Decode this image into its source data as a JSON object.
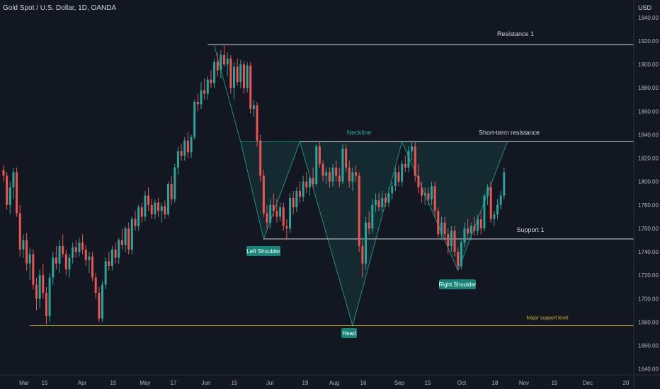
{
  "header": {
    "symbol": "Gold Spot / U.S. Dollar, 1D, OANDA",
    "currency": "USD"
  },
  "chart_data": {
    "type": "candlestick",
    "ylim": [
      1635,
      1955
    ],
    "y_ticks": [
      1940,
      1920,
      1900,
      1880,
      1860,
      1840,
      1820,
      1800,
      1780,
      1760,
      1740,
      1720,
      1700,
      1680,
      1660,
      1640
    ],
    "x_ticks": [
      "Mar",
      "15",
      "Apr",
      "15",
      "May",
      "17",
      "Jun",
      "15",
      "Jul",
      "19",
      "Aug",
      "16",
      "Sep",
      "15",
      "Oct",
      "18",
      "Nov",
      "15",
      "Dec",
      "20"
    ],
    "grid": false,
    "candles": [
      {
        "o": 1810,
        "h": 1814,
        "l": 1800,
        "c": 1805
      },
      {
        "o": 1805,
        "h": 1808,
        "l": 1776,
        "c": 1780
      },
      {
        "o": 1780,
        "h": 1800,
        "l": 1772,
        "c": 1795
      },
      {
        "o": 1795,
        "h": 1812,
        "l": 1785,
        "c": 1808
      },
      {
        "o": 1808,
        "h": 1812,
        "l": 1770,
        "c": 1773
      },
      {
        "o": 1773,
        "h": 1780,
        "l": 1736,
        "c": 1742
      },
      {
        "o": 1742,
        "h": 1755,
        "l": 1735,
        "c": 1750
      },
      {
        "o": 1750,
        "h": 1756,
        "l": 1724,
        "c": 1730
      },
      {
        "o": 1730,
        "h": 1743,
        "l": 1716,
        "c": 1738
      },
      {
        "o": 1738,
        "h": 1742,
        "l": 1708,
        "c": 1712
      },
      {
        "o": 1712,
        "h": 1718,
        "l": 1690,
        "c": 1700
      },
      {
        "o": 1700,
        "h": 1725,
        "l": 1692,
        "c": 1720
      },
      {
        "o": 1720,
        "h": 1730,
        "l": 1700,
        "c": 1705
      },
      {
        "o": 1705,
        "h": 1710,
        "l": 1678,
        "c": 1685
      },
      {
        "o": 1685,
        "h": 1722,
        "l": 1680,
        "c": 1718
      },
      {
        "o": 1718,
        "h": 1740,
        "l": 1712,
        "c": 1735
      },
      {
        "o": 1735,
        "h": 1745,
        "l": 1725,
        "c": 1730
      },
      {
        "o": 1730,
        "h": 1750,
        "l": 1722,
        "c": 1745
      },
      {
        "o": 1745,
        "h": 1755,
        "l": 1735,
        "c": 1738
      },
      {
        "o": 1738,
        "h": 1742,
        "l": 1720,
        "c": 1725
      },
      {
        "o": 1725,
        "h": 1738,
        "l": 1718,
        "c": 1735
      },
      {
        "o": 1735,
        "h": 1748,
        "l": 1730,
        "c": 1744
      },
      {
        "o": 1744,
        "h": 1750,
        "l": 1735,
        "c": 1740
      },
      {
        "o": 1740,
        "h": 1752,
        "l": 1736,
        "c": 1748
      },
      {
        "o": 1748,
        "h": 1755,
        "l": 1738,
        "c": 1742
      },
      {
        "o": 1742,
        "h": 1746,
        "l": 1728,
        "c": 1733
      },
      {
        "o": 1733,
        "h": 1740,
        "l": 1722,
        "c": 1736
      },
      {
        "o": 1736,
        "h": 1740,
        "l": 1715,
        "c": 1718
      },
      {
        "o": 1718,
        "h": 1722,
        "l": 1700,
        "c": 1705
      },
      {
        "o": 1705,
        "h": 1710,
        "l": 1680,
        "c": 1683
      },
      {
        "o": 1683,
        "h": 1715,
        "l": 1680,
        "c": 1712
      },
      {
        "o": 1712,
        "h": 1735,
        "l": 1708,
        "c": 1732
      },
      {
        "o": 1732,
        "h": 1740,
        "l": 1724,
        "c": 1728
      },
      {
        "o": 1728,
        "h": 1745,
        "l": 1724,
        "c": 1742
      },
      {
        "o": 1742,
        "h": 1748,
        "l": 1730,
        "c": 1735
      },
      {
        "o": 1735,
        "h": 1752,
        "l": 1730,
        "c": 1750
      },
      {
        "o": 1750,
        "h": 1760,
        "l": 1742,
        "c": 1746
      },
      {
        "o": 1746,
        "h": 1762,
        "l": 1740,
        "c": 1760
      },
      {
        "o": 1760,
        "h": 1765,
        "l": 1738,
        "c": 1742
      },
      {
        "o": 1742,
        "h": 1770,
        "l": 1738,
        "c": 1768
      },
      {
        "o": 1768,
        "h": 1775,
        "l": 1758,
        "c": 1762
      },
      {
        "o": 1762,
        "h": 1780,
        "l": 1758,
        "c": 1778
      },
      {
        "o": 1778,
        "h": 1782,
        "l": 1765,
        "c": 1770
      },
      {
        "o": 1770,
        "h": 1792,
        "l": 1766,
        "c": 1788
      },
      {
        "o": 1788,
        "h": 1795,
        "l": 1775,
        "c": 1780
      },
      {
        "o": 1780,
        "h": 1785,
        "l": 1768,
        "c": 1772
      },
      {
        "o": 1772,
        "h": 1785,
        "l": 1768,
        "c": 1782
      },
      {
        "o": 1782,
        "h": 1786,
        "l": 1770,
        "c": 1775
      },
      {
        "o": 1775,
        "h": 1782,
        "l": 1765,
        "c": 1779
      },
      {
        "o": 1779,
        "h": 1784,
        "l": 1768,
        "c": 1772
      },
      {
        "o": 1772,
        "h": 1800,
        "l": 1770,
        "c": 1798
      },
      {
        "o": 1798,
        "h": 1805,
        "l": 1780,
        "c": 1785
      },
      {
        "o": 1785,
        "h": 1815,
        "l": 1782,
        "c": 1812
      },
      {
        "o": 1812,
        "h": 1830,
        "l": 1806,
        "c": 1826
      },
      {
        "o": 1826,
        "h": 1832,
        "l": 1818,
        "c": 1822
      },
      {
        "o": 1822,
        "h": 1838,
        "l": 1818,
        "c": 1835
      },
      {
        "o": 1835,
        "h": 1842,
        "l": 1820,
        "c": 1825
      },
      {
        "o": 1825,
        "h": 1840,
        "l": 1820,
        "c": 1838
      },
      {
        "o": 1838,
        "h": 1870,
        "l": 1836,
        "c": 1868
      },
      {
        "o": 1868,
        "h": 1875,
        "l": 1860,
        "c": 1866
      },
      {
        "o": 1866,
        "h": 1885,
        "l": 1862,
        "c": 1878
      },
      {
        "o": 1878,
        "h": 1888,
        "l": 1870,
        "c": 1875
      },
      {
        "o": 1875,
        "h": 1890,
        "l": 1870,
        "c": 1887
      },
      {
        "o": 1887,
        "h": 1895,
        "l": 1880,
        "c": 1884
      },
      {
        "o": 1884,
        "h": 1905,
        "l": 1880,
        "c": 1902
      },
      {
        "o": 1902,
        "h": 1910,
        "l": 1890,
        "c": 1895
      },
      {
        "o": 1895,
        "h": 1912,
        "l": 1888,
        "c": 1908
      },
      {
        "o": 1908,
        "h": 1916,
        "l": 1898,
        "c": 1900
      },
      {
        "o": 1900,
        "h": 1910,
        "l": 1890,
        "c": 1905
      },
      {
        "o": 1905,
        "h": 1908,
        "l": 1875,
        "c": 1880
      },
      {
        "o": 1880,
        "h": 1902,
        "l": 1870,
        "c": 1898
      },
      {
        "o": 1898,
        "h": 1905,
        "l": 1882,
        "c": 1885
      },
      {
        "o": 1885,
        "h": 1904,
        "l": 1880,
        "c": 1900
      },
      {
        "o": 1900,
        "h": 1903,
        "l": 1875,
        "c": 1880
      },
      {
        "o": 1880,
        "h": 1902,
        "l": 1876,
        "c": 1899
      },
      {
        "o": 1899,
        "h": 1902,
        "l": 1858,
        "c": 1862
      },
      {
        "o": 1862,
        "h": 1870,
        "l": 1855,
        "c": 1865
      },
      {
        "o": 1865,
        "h": 1868,
        "l": 1830,
        "c": 1835
      },
      {
        "o": 1835,
        "h": 1840,
        "l": 1800,
        "c": 1805
      },
      {
        "o": 1805,
        "h": 1810,
        "l": 1770,
        "c": 1773
      },
      {
        "o": 1773,
        "h": 1780,
        "l": 1760,
        "c": 1765
      },
      {
        "o": 1765,
        "h": 1785,
        "l": 1760,
        "c": 1780
      },
      {
        "o": 1780,
        "h": 1790,
        "l": 1770,
        "c": 1775
      },
      {
        "o": 1775,
        "h": 1785,
        "l": 1765,
        "c": 1770
      },
      {
        "o": 1770,
        "h": 1782,
        "l": 1766,
        "c": 1778
      },
      {
        "o": 1778,
        "h": 1782,
        "l": 1758,
        "c": 1762
      },
      {
        "o": 1762,
        "h": 1768,
        "l": 1750,
        "c": 1760
      },
      {
        "o": 1760,
        "h": 1790,
        "l": 1756,
        "c": 1786
      },
      {
        "o": 1786,
        "h": 1792,
        "l": 1772,
        "c": 1778
      },
      {
        "o": 1778,
        "h": 1795,
        "l": 1774,
        "c": 1792
      },
      {
        "o": 1792,
        "h": 1800,
        "l": 1782,
        "c": 1787
      },
      {
        "o": 1787,
        "h": 1805,
        "l": 1783,
        "c": 1800
      },
      {
        "o": 1800,
        "h": 1808,
        "l": 1790,
        "c": 1795
      },
      {
        "o": 1795,
        "h": 1805,
        "l": 1788,
        "c": 1803
      },
      {
        "o": 1803,
        "h": 1812,
        "l": 1795,
        "c": 1798
      },
      {
        "o": 1798,
        "h": 1832,
        "l": 1796,
        "c": 1830
      },
      {
        "o": 1830,
        "h": 1834,
        "l": 1812,
        "c": 1815
      },
      {
        "o": 1815,
        "h": 1818,
        "l": 1800,
        "c": 1805
      },
      {
        "o": 1805,
        "h": 1812,
        "l": 1798,
        "c": 1808
      },
      {
        "o": 1808,
        "h": 1812,
        "l": 1795,
        "c": 1800
      },
      {
        "o": 1800,
        "h": 1815,
        "l": 1796,
        "c": 1812
      },
      {
        "o": 1812,
        "h": 1818,
        "l": 1800,
        "c": 1805
      },
      {
        "o": 1805,
        "h": 1812,
        "l": 1795,
        "c": 1800
      },
      {
        "o": 1800,
        "h": 1832,
        "l": 1798,
        "c": 1828
      },
      {
        "o": 1828,
        "h": 1832,
        "l": 1808,
        "c": 1812
      },
      {
        "o": 1812,
        "h": 1818,
        "l": 1795,
        "c": 1800
      },
      {
        "o": 1800,
        "h": 1812,
        "l": 1792,
        "c": 1808
      },
      {
        "o": 1808,
        "h": 1814,
        "l": 1800,
        "c": 1805
      },
      {
        "o": 1805,
        "h": 1808,
        "l": 1740,
        "c": 1745
      },
      {
        "o": 1745,
        "h": 1750,
        "l": 1718,
        "c": 1730
      },
      {
        "o": 1730,
        "h": 1770,
        "l": 1725,
        "c": 1765
      },
      {
        "o": 1765,
        "h": 1775,
        "l": 1755,
        "c": 1760
      },
      {
        "o": 1760,
        "h": 1785,
        "l": 1756,
        "c": 1780
      },
      {
        "o": 1780,
        "h": 1790,
        "l": 1774,
        "c": 1784
      },
      {
        "o": 1784,
        "h": 1790,
        "l": 1775,
        "c": 1778
      },
      {
        "o": 1778,
        "h": 1792,
        "l": 1774,
        "c": 1786
      },
      {
        "o": 1786,
        "h": 1790,
        "l": 1778,
        "c": 1782
      },
      {
        "o": 1782,
        "h": 1795,
        "l": 1778,
        "c": 1790
      },
      {
        "o": 1790,
        "h": 1800,
        "l": 1785,
        "c": 1796
      },
      {
        "o": 1796,
        "h": 1812,
        "l": 1792,
        "c": 1808
      },
      {
        "o": 1808,
        "h": 1814,
        "l": 1796,
        "c": 1800
      },
      {
        "o": 1800,
        "h": 1818,
        "l": 1796,
        "c": 1815
      },
      {
        "o": 1815,
        "h": 1822,
        "l": 1808,
        "c": 1812
      },
      {
        "o": 1812,
        "h": 1830,
        "l": 1808,
        "c": 1826
      },
      {
        "o": 1826,
        "h": 1835,
        "l": 1818,
        "c": 1830
      },
      {
        "o": 1830,
        "h": 1834,
        "l": 1800,
        "c": 1805
      },
      {
        "o": 1805,
        "h": 1815,
        "l": 1790,
        "c": 1795
      },
      {
        "o": 1795,
        "h": 1800,
        "l": 1782,
        "c": 1788
      },
      {
        "o": 1788,
        "h": 1795,
        "l": 1780,
        "c": 1790
      },
      {
        "o": 1790,
        "h": 1795,
        "l": 1780,
        "c": 1785
      },
      {
        "o": 1785,
        "h": 1800,
        "l": 1780,
        "c": 1796
      },
      {
        "o": 1796,
        "h": 1800,
        "l": 1770,
        "c": 1775
      },
      {
        "o": 1775,
        "h": 1778,
        "l": 1752,
        "c": 1755
      },
      {
        "o": 1755,
        "h": 1770,
        "l": 1750,
        "c": 1765
      },
      {
        "o": 1765,
        "h": 1770,
        "l": 1750,
        "c": 1755
      },
      {
        "o": 1755,
        "h": 1760,
        "l": 1738,
        "c": 1745
      },
      {
        "o": 1745,
        "h": 1762,
        "l": 1740,
        "c": 1758
      },
      {
        "o": 1758,
        "h": 1762,
        "l": 1736,
        "c": 1740
      },
      {
        "o": 1740,
        "h": 1744,
        "l": 1724,
        "c": 1728
      },
      {
        "o": 1728,
        "h": 1750,
        "l": 1725,
        "c": 1748
      },
      {
        "o": 1748,
        "h": 1765,
        "l": 1744,
        "c": 1760
      },
      {
        "o": 1760,
        "h": 1768,
        "l": 1752,
        "c": 1756
      },
      {
        "o": 1756,
        "h": 1765,
        "l": 1750,
        "c": 1762
      },
      {
        "o": 1762,
        "h": 1770,
        "l": 1754,
        "c": 1758
      },
      {
        "o": 1758,
        "h": 1772,
        "l": 1754,
        "c": 1768
      },
      {
        "o": 1768,
        "h": 1775,
        "l": 1755,
        "c": 1760
      },
      {
        "o": 1760,
        "h": 1790,
        "l": 1758,
        "c": 1788
      },
      {
        "o": 1788,
        "h": 1798,
        "l": 1780,
        "c": 1795
      },
      {
        "o": 1795,
        "h": 1800,
        "l": 1765,
        "c": 1768
      },
      {
        "o": 1768,
        "h": 1775,
        "l": 1762,
        "c": 1772
      },
      {
        "o": 1772,
        "h": 1785,
        "l": 1768,
        "c": 1780
      },
      {
        "o": 1780,
        "h": 1792,
        "l": 1776,
        "c": 1788
      },
      {
        "o": 1788,
        "h": 1812,
        "l": 1785,
        "c": 1808
      }
    ],
    "annotations": {
      "resistance_label": "Resistance 1",
      "short_term_label": "Short-term resistance",
      "neckline_label": "Neckline",
      "support_label": "Support 1",
      "major_support_label": "Major support level",
      "left_shoulder_label": "Left Shoulder",
      "head_label": "Head",
      "right_shoulder_label": "Right Shoulder"
    },
    "levels": {
      "resistance_1": 1917,
      "short_term_resistance": 1834,
      "support_1": 1751,
      "major_support": 1677
    },
    "colors": {
      "up": "#26a69a",
      "down": "#ef5350",
      "background": "#131722",
      "axis_text": "#b2b5be",
      "line_white": "#d1d4dc",
      "major_support": "#c9b11a",
      "pattern_fill": "#26a69a",
      "label_bg": "#17857a"
    }
  }
}
